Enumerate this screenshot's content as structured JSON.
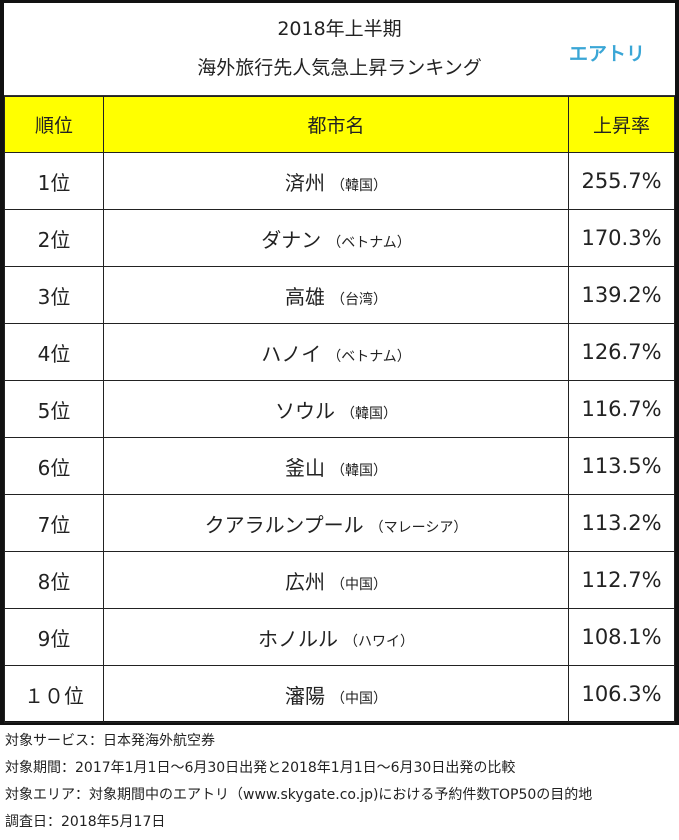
{
  "header": {
    "title_line1": "2018年上半期",
    "title_line2": "海外旅行先人気急上昇ランキング",
    "logo_text": "エアトリ",
    "logo_color": "#3aa6d6",
    "header_bg_color": "#ffff00"
  },
  "table": {
    "columns": [
      "順位",
      "都市名",
      "上昇率"
    ],
    "rows": [
      {
        "rank": "1位",
        "city": "済州",
        "country": "（韓国）",
        "rate": "255.7%"
      },
      {
        "rank": "2位",
        "city": "ダナン",
        "country": "（ベトナム）",
        "rate": "170.3%"
      },
      {
        "rank": "3位",
        "city": "高雄",
        "country": "（台湾）",
        "rate": "139.2%"
      },
      {
        "rank": "4位",
        "city": "ハノイ",
        "country": "（ベトナム）",
        "rate": "126.7%"
      },
      {
        "rank": "5位",
        "city": "ソウル",
        "country": "（韓国）",
        "rate": "116.7%"
      },
      {
        "rank": "6位",
        "city": "釜山",
        "country": "（韓国）",
        "rate": "113.5%"
      },
      {
        "rank": "7位",
        "city": "クアラルンプール",
        "country": "（マレーシア）",
        "rate": "113.2%"
      },
      {
        "rank": "8位",
        "city": "広州",
        "country": "（中国）",
        "rate": "112.7%"
      },
      {
        "rank": "9位",
        "city": "ホノルル",
        "country": "（ハワイ）",
        "rate": "108.1%"
      },
      {
        "rank": "１０位",
        "city": "瀋陽",
        "country": "（中国）",
        "rate": "106.3%"
      }
    ]
  },
  "notes": [
    "対象サービス：日本発海外航空券",
    "対象期間：2017年1月1日～6月30日出発と2018年1月1日～6月30日出発の比較",
    "対象エリア：対象期間中のエアトリ（www.skygate.co.jp)における予約件数TOP50の目的地",
    "調査日：2018年5月17日"
  ]
}
